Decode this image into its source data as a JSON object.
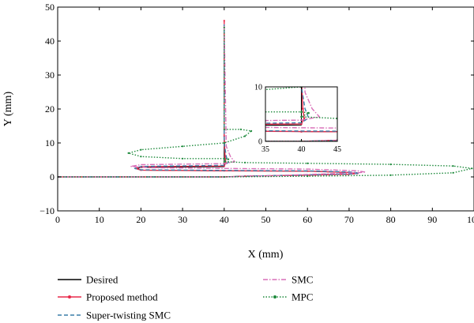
{
  "chart_data": [
    {
      "type": "line",
      "xlabel": "X (mm)",
      "ylabel": "Y (mm)",
      "xlim": [
        0,
        100
      ],
      "ylim": [
        -10,
        50
      ],
      "xticks": [
        0,
        10,
        20,
        30,
        40,
        50,
        60,
        70,
        80,
        90,
        100
      ],
      "yticks": [
        -10,
        0,
        10,
        20,
        30,
        40,
        50
      ],
      "grid": false,
      "legend_position": "below",
      "series": [
        {
          "name": "Desired",
          "color": "#000000",
          "style": "solid",
          "x": [
            0,
            40,
            45,
            60,
            70,
            71,
            70,
            60,
            40,
            20,
            19,
            20,
            40,
            40,
            40
          ],
          "y": [
            0,
            0,
            0.2,
            0.5,
            0.8,
            1.0,
            1.3,
            1.7,
            1.8,
            2.0,
            2.4,
            2.8,
            3.0,
            4.0,
            45
          ]
        },
        {
          "name": "Proposed method",
          "color": "#e8294a",
          "style": "solid-marker",
          "x": [
            0,
            40,
            45,
            60,
            70,
            72,
            70,
            60,
            40,
            20,
            18.8,
            20,
            40,
            40.4,
            40.2,
            40,
            40
          ],
          "y": [
            0,
            0,
            0.2,
            0.5,
            0.8,
            1.0,
            1.3,
            1.7,
            1.8,
            2.0,
            2.5,
            3.0,
            3.2,
            4.2,
            6,
            12,
            46
          ]
        },
        {
          "name": "Super-twisting SMC",
          "color": "#3a7ea8",
          "style": "dashed",
          "x": [
            0,
            40,
            45,
            60,
            71,
            72.5,
            71,
            60,
            40,
            20,
            18.5,
            20,
            40,
            41,
            40.5,
            40,
            40
          ],
          "y": [
            0,
            0,
            0.2,
            0.6,
            0.9,
            1.1,
            1.4,
            1.8,
            1.9,
            2.1,
            2.5,
            3.1,
            3.4,
            4.3,
            6,
            10,
            45
          ]
        },
        {
          "name": "SMC",
          "color": "#d96fb8",
          "style": "dashdot",
          "x": [
            0,
            40,
            50,
            62,
            72,
            74,
            72,
            60,
            40,
            22,
            17.5,
            20,
            40,
            42.5,
            41.5,
            40.5,
            40
          ],
          "y": [
            0,
            0,
            0.3,
            0.8,
            1.2,
            1.4,
            1.8,
            2.3,
            2.5,
            2.7,
            3.1,
            3.6,
            3.9,
            4.5,
            6,
            9,
            45
          ]
        },
        {
          "name": "MPC",
          "color": "#1e8a3c",
          "style": "dotted-marker",
          "x": [
            0,
            40,
            60,
            80,
            95,
            99.5,
            95,
            80,
            60,
            45,
            40,
            41,
            40,
            30,
            20,
            17,
            20,
            30,
            40,
            45,
            46.5,
            44,
            40,
            40
          ],
          "y": [
            0,
            0,
            0.2,
            0.5,
            1.2,
            2.5,
            3.2,
            3.7,
            4.0,
            4.2,
            4.5,
            5.2,
            5.4,
            5.4,
            6.0,
            7.0,
            8.0,
            9.0,
            10.0,
            12.0,
            13.5,
            14.0,
            14.0,
            44
          ]
        }
      ]
    },
    {
      "type": "line",
      "role": "inset",
      "xlim": [
        35,
        45
      ],
      "ylim": [
        0,
        10
      ],
      "xticks": [
        35,
        40,
        45
      ],
      "yticks": [
        0,
        10
      ]
    }
  ]
}
